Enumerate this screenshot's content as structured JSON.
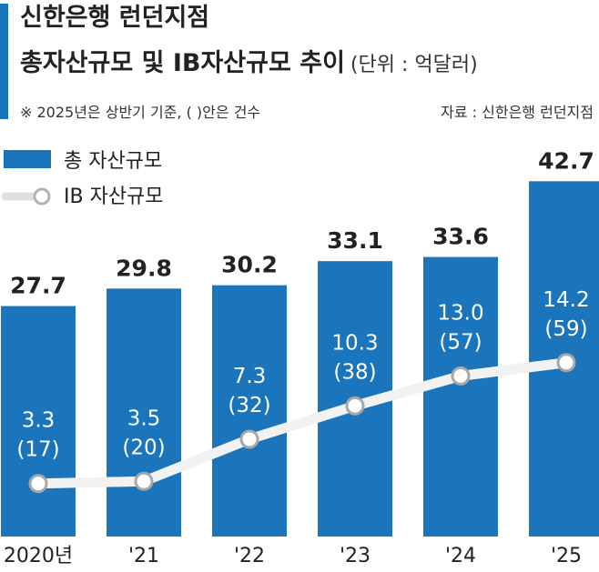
{
  "header": {
    "title_line1": "신한은행 런던지점",
    "title_line2": "총자산규모 및 IB자산규모 추이",
    "unit": "(단위 : 억달러)",
    "note": "※ 2025년은 상반기 기준, ( )안은 건수",
    "source": "자료 : 신한은행 런던지점"
  },
  "colors": {
    "bar": "#1b75bc",
    "line": "#ffffff",
    "text": "#222222"
  },
  "chart_data": {
    "type": "bar",
    "categories": [
      "2020년",
      "'21",
      "'22",
      "'23",
      "'24",
      "'25"
    ],
    "series": [
      {
        "name": "총 자산규모",
        "type": "bar",
        "values": [
          27.7,
          29.8,
          30.2,
          33.1,
          33.6,
          42.7
        ]
      },
      {
        "name": "IB 자산규모",
        "type": "line",
        "values": [
          3.3,
          3.5,
          7.3,
          10.3,
          13.0,
          14.2
        ],
        "counts": [
          "(17)",
          "(20)",
          "(32)",
          "(38)",
          "(57)",
          "(59)"
        ]
      }
    ],
    "bar_labels": [
      "27.7",
      "29.8",
      "30.2",
      "33.1",
      "33.6",
      "42.7"
    ],
    "line_labels": [
      "3.3",
      "3.5",
      "7.3",
      "10.3",
      "13.0",
      "14.2"
    ],
    "legend_position": "top-left",
    "grid": false
  }
}
